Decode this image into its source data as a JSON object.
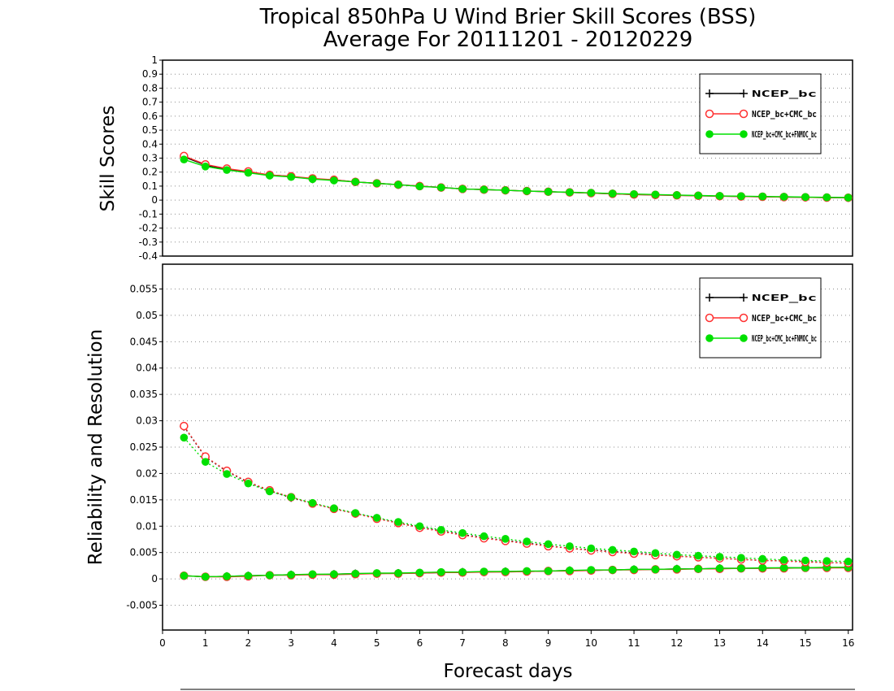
{
  "chart_data": {
    "title": "Tropical 850hPa U Wind Brier Skill Scores (BSS)",
    "subtitle": "Average For 20111201 - 20120229",
    "xlabel": "Forecast days",
    "xlim": [
      0,
      16.1
    ],
    "x_ticks": [
      "0",
      "1",
      "2",
      "3",
      "4",
      "5",
      "6",
      "7",
      "8",
      "9",
      "10",
      "11",
      "12",
      "13",
      "14",
      "15",
      "16"
    ],
    "x": [
      0.5,
      1,
      1.5,
      2,
      2.5,
      3,
      3.5,
      4,
      4.5,
      5,
      5.5,
      6,
      6.5,
      7,
      7.5,
      8,
      8.5,
      9,
      9.5,
      10,
      10.5,
      11,
      11.5,
      12,
      12.5,
      13,
      13.5,
      14,
      14.5,
      15,
      15.5,
      16
    ],
    "legend_labels": [
      "NCEP_bc",
      "NCEP_bc+CMC_bc",
      "NCEP_bc+CMC_bc+FNMOC_bc"
    ],
    "colors": {
      "series1": "#000000",
      "series2": "#ff3030",
      "series3": "#00e000"
    },
    "panels": [
      {
        "type": "line",
        "ylabel": "Skill Scores",
        "ylim": [
          -0.4,
          1
        ],
        "y_ticks": [
          "1",
          "0.9",
          "0.8",
          "0.7",
          "0.6",
          "0.5",
          "0.4",
          "0.3",
          "0.2",
          "0.1",
          "0",
          "-0.1",
          "-0.2",
          "-0.3",
          "-0.4"
        ],
        "legend_position": "top-right",
        "series": [
          {
            "marker": "plus",
            "line": "solid",
            "values": [
              0.31,
              0.25,
              0.22,
              0.2,
              0.18,
              0.17,
              0.15,
              0.145,
              0.13,
              0.12,
              0.11,
              0.1,
              0.09,
              0.08,
              0.075,
              0.07,
              0.065,
              0.06,
              0.055,
              0.05,
              0.045,
              0.04,
              0.037,
              0.034,
              0.031,
              0.028,
              0.026,
              0.024,
              0.022,
              0.02,
              0.018,
              0.017
            ]
          },
          {
            "marker": "open-circle",
            "line": "solid",
            "values": [
              0.315,
              0.255,
              0.225,
              0.205,
              0.18,
              0.17,
              0.155,
              0.145,
              0.13,
              0.12,
              0.11,
              0.1,
              0.09,
              0.08,
              0.075,
              0.07,
              0.065,
              0.06,
              0.055,
              0.05,
              0.045,
              0.04,
              0.037,
              0.034,
              0.031,
              0.028,
              0.026,
              0.024,
              0.022,
              0.02,
              0.018,
              0.017
            ]
          },
          {
            "marker": "filled-circle",
            "line": "solid",
            "values": [
              0.29,
              0.24,
              0.215,
              0.195,
              0.175,
              0.165,
              0.15,
              0.14,
              0.13,
              0.12,
              0.11,
              0.098,
              0.09,
              0.08,
              0.075,
              0.07,
              0.065,
              0.06,
              0.056,
              0.052,
              0.047,
              0.043,
              0.04,
              0.036,
              0.033,
              0.03,
              0.028,
              0.026,
              0.024,
              0.022,
              0.02,
              0.018
            ]
          }
        ]
      },
      {
        "type": "line",
        "ylabel": "Reliability and Resolution",
        "ylim": [
          -0.0097,
          0.0597
        ],
        "y_ticks": [
          "0.055",
          "0.05",
          "0.045",
          "0.04",
          "0.035",
          "0.03",
          "0.025",
          "0.02",
          "0.015",
          "0.01",
          "0.005",
          "0",
          "-0.005"
        ],
        "legend_position": "top-right",
        "series": [
          {
            "marker": "plus",
            "line": "solid",
            "values": [
              0.0006,
              0.0004,
              0.0005,
              0.0006,
              0.0007,
              0.0008,
              0.0008,
              0.0009,
              0.001,
              0.001,
              0.0011,
              0.0011,
              0.0012,
              0.0013,
              0.0013,
              0.0014,
              0.0014,
              0.0015,
              0.0016,
              0.0016,
              0.0017,
              0.0018,
              0.0018,
              0.0019,
              0.0019,
              0.002,
              0.002,
              0.002,
              0.0021,
              0.0021,
              0.0021,
              0.0022
            ]
          },
          {
            "marker": "open-circle",
            "line": "solid",
            "values": [
              0.0006,
              0.0004,
              0.0004,
              0.0005,
              0.0007,
              0.0007,
              0.0008,
              0.0008,
              0.0009,
              0.001,
              0.001,
              0.0011,
              0.0012,
              0.0012,
              0.0013,
              0.0013,
              0.0014,
              0.0015,
              0.0015,
              0.0016,
              0.0017,
              0.0017,
              0.0018,
              0.0018,
              0.0019,
              0.0019,
              0.002,
              0.002,
              0.002,
              0.0021,
              0.0021,
              0.0021
            ]
          },
          {
            "marker": "filled-circle",
            "line": "solid",
            "values": [
              0.0006,
              0.0004,
              0.0005,
              0.0006,
              0.0007,
              0.0008,
              0.0009,
              0.0009,
              0.001,
              0.0011,
              0.0011,
              0.0012,
              0.0013,
              0.0013,
              0.0014,
              0.0014,
              0.0015,
              0.0015,
              0.0016,
              0.0017,
              0.0017,
              0.0018,
              0.0018,
              0.0019,
              0.0019,
              0.002,
              0.002,
              0.0021,
              0.0021,
              0.0021,
              0.0022,
              0.0022
            ]
          },
          {
            "marker": "plus",
            "line": "dotted",
            "values": [
              0.0289,
              0.0231,
              0.0204,
              0.0183,
              0.0167,
              0.0154,
              0.0143,
              0.0133,
              0.0124,
              0.0115,
              0.0106,
              0.0098,
              0.0091,
              0.0084,
              0.0078,
              0.0073,
              0.0068,
              0.0063,
              0.0058,
              0.0055,
              0.0052,
              0.0049,
              0.0046,
              0.0043,
              0.0041,
              0.0039,
              0.0037,
              0.0035,
              0.0034,
              0.0033,
              0.0031,
              0.003
            ]
          },
          {
            "marker": "open-circle",
            "line": "dotted",
            "values": [
              0.029,
              0.0232,
              0.0205,
              0.0184,
              0.0168,
              0.0155,
              0.0143,
              0.0133,
              0.0124,
              0.0114,
              0.0106,
              0.0097,
              0.009,
              0.0083,
              0.0077,
              0.0072,
              0.0067,
              0.0062,
              0.0058,
              0.0054,
              0.0051,
              0.0048,
              0.0045,
              0.0043,
              0.0041,
              0.0039,
              0.0037,
              0.0035,
              0.0034,
              0.0032,
              0.0031,
              0.003
            ]
          },
          {
            "marker": "filled-circle",
            "line": "dotted",
            "values": [
              0.0268,
              0.0222,
              0.0199,
              0.0181,
              0.0166,
              0.0155,
              0.0144,
              0.0134,
              0.0125,
              0.0116,
              0.0108,
              0.01,
              0.0093,
              0.0087,
              0.0081,
              0.0076,
              0.0071,
              0.0066,
              0.0062,
              0.0058,
              0.0055,
              0.0052,
              0.0049,
              0.0046,
              0.0044,
              0.0042,
              0.004,
              0.0038,
              0.0036,
              0.0035,
              0.0034,
              0.0033
            ]
          }
        ]
      }
    ]
  }
}
